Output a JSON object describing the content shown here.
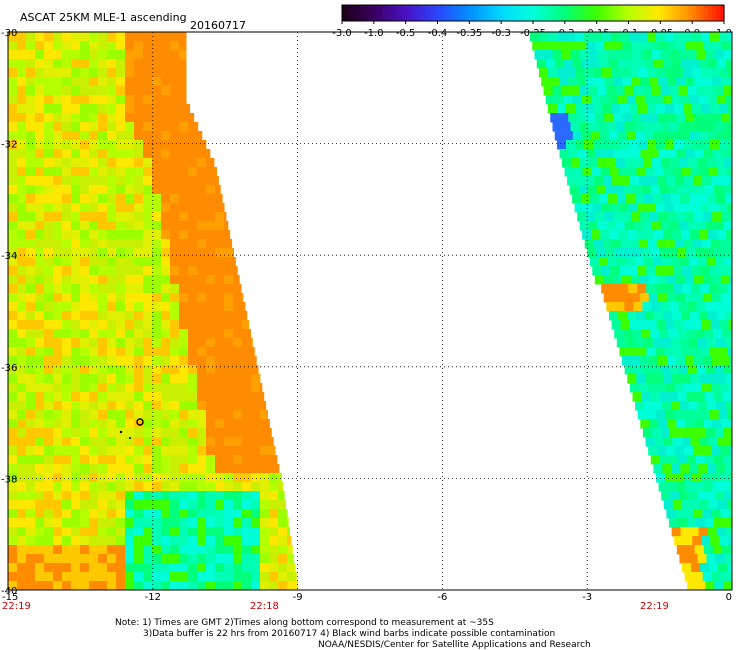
{
  "header": {
    "title": "ASCAT 25KM MLE-1 ascending",
    "date": "20160717"
  },
  "colorbar": {
    "labels": [
      "-3.0",
      "-1.0",
      "-0.5",
      "-0.4",
      "-0.35",
      "-0.3",
      "-0.25",
      "-0.2",
      "-0.15",
      "-0.1",
      "-0.05",
      "0.0",
      "1.0"
    ],
    "colors": [
      "#1a0018",
      "#3c0066",
      "#4a12c8",
      "#2a48ff",
      "#0090ff",
      "#00d8ff",
      "#00ffd8",
      "#00ff7a",
      "#3cff00",
      "#b4ff00",
      "#ffe800",
      "#ff8c00",
      "#ff1400"
    ]
  },
  "axes": {
    "x_ticks": [
      "-15",
      "-12",
      "-9",
      "-6",
      "-3",
      "0"
    ],
    "y_ticks": [
      "-30",
      "-32",
      "-34",
      "-36",
      "-38",
      "-40"
    ],
    "lon_range": [
      -15,
      0
    ],
    "lat_range": [
      -40,
      -30
    ]
  },
  "times": {
    "left": "22:19",
    "mid": "22:18",
    "right": "22:19"
  },
  "notes": [
    "Note: 1) Times are GMT 2)Times along bottom correspond to measurement at ~35S",
    "3)Data buffer is 22 hrs from 20160717 4) Black wind barbs indicate possible contamination",
    "NOAA/NESDIS/Center for Satellite Applications and Research"
  ],
  "map": {
    "left_swath_base_color": "#c8f000",
    "left_swath_edge_color": "#ff8c00",
    "right_swath_base_color": "#00ff9a",
    "right_swath_accent_color": "#00f0d0"
  }
}
